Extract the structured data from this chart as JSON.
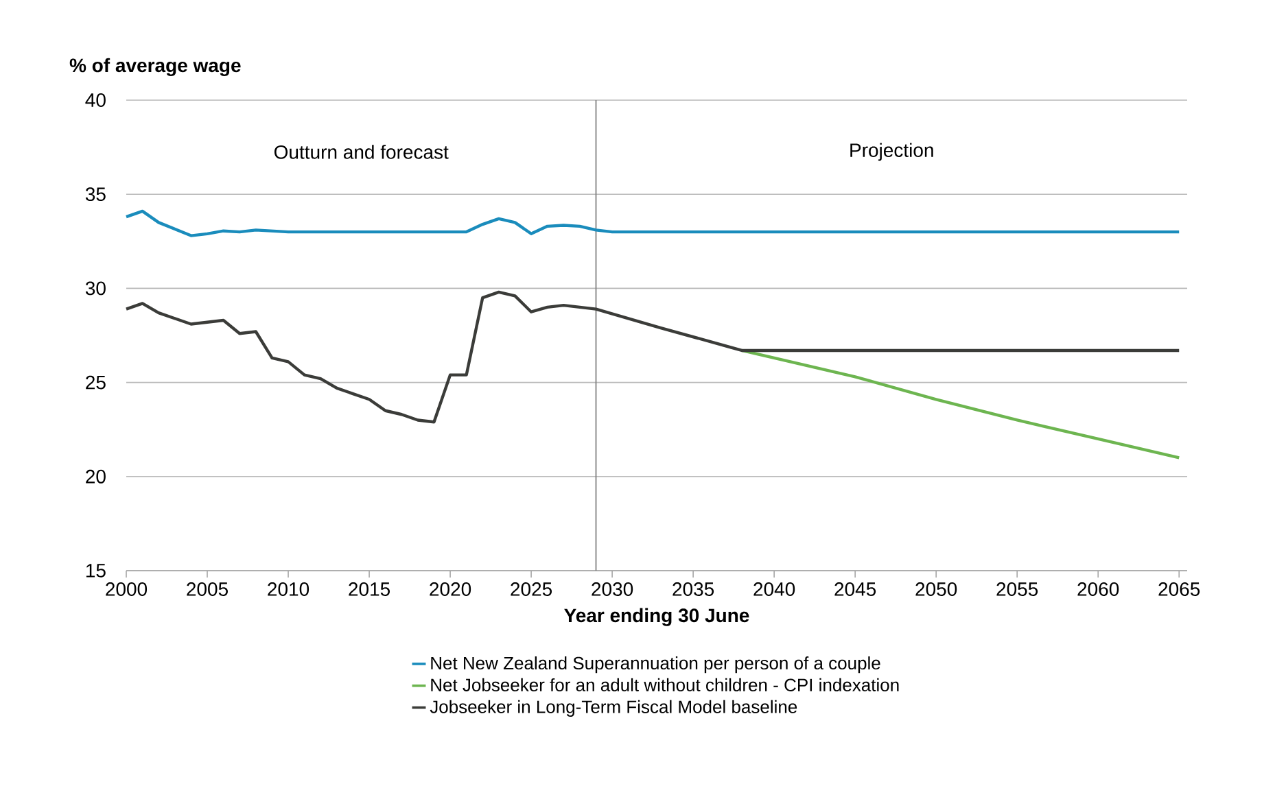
{
  "chart_data": {
    "type": "line",
    "ylabel": "% of average wage",
    "xlabel": "Year ending 30 June",
    "xlim": [
      2000,
      2065.5
    ],
    "ylim": [
      15,
      40
    ],
    "xticks": [
      2000,
      2005,
      2010,
      2015,
      2020,
      2025,
      2030,
      2035,
      2040,
      2045,
      2050,
      2055,
      2060,
      2065
    ],
    "yticks": [
      15,
      20,
      25,
      30,
      35,
      40
    ],
    "grid": "y",
    "legend": "bottom",
    "ref_lines": [
      {
        "axis": "x",
        "value": 2029,
        "color": "#808080"
      }
    ],
    "annotations": [
      "Outturn and forecast",
      "Projection"
    ],
    "series": [
      {
        "name": "Net New Zealand Superannuation per person of a couple",
        "color": "#1a8cbc",
        "x": [
          2000,
          2001,
          2002,
          2004,
          2005,
          2006,
          2007,
          2008,
          2009,
          2010,
          2021,
          2022,
          2023,
          2024,
          2025,
          2026,
          2027,
          2028,
          2029,
          2030,
          2065
        ],
        "values": [
          33.8,
          34.1,
          33.5,
          32.8,
          32.9,
          33.05,
          33.0,
          33.1,
          33.05,
          33.0,
          33.0,
          33.4,
          33.7,
          33.5,
          32.9,
          33.3,
          33.35,
          33.3,
          33.1,
          33.0,
          33.0
        ]
      },
      {
        "name": "Net Jobseeker for an adult without children - CPI indexation",
        "color": "#6db550",
        "x": [
          2038,
          2045,
          2050,
          2055,
          2060,
          2065
        ],
        "values": [
          26.7,
          25.3,
          24.1,
          23.0,
          22.0,
          21.0
        ]
      },
      {
        "name": "Jobseeker in Long-Term Fiscal Model baseline",
        "color": "#3b3c39",
        "x": [
          2000,
          2001,
          2002,
          2004,
          2005,
          2006,
          2007,
          2008,
          2009,
          2010,
          2011,
          2012,
          2013,
          2014,
          2015,
          2016,
          2017,
          2018,
          2019,
          2020,
          2021,
          2022,
          2023,
          2024,
          2025,
          2026,
          2027,
          2028,
          2029,
          2033,
          2038,
          2065
        ],
        "values": [
          28.9,
          29.2,
          28.7,
          28.1,
          28.2,
          28.3,
          27.6,
          27.7,
          26.3,
          26.1,
          25.4,
          25.2,
          24.7,
          24.4,
          24.1,
          23.5,
          23.3,
          23.0,
          22.9,
          25.4,
          25.4,
          29.5,
          29.8,
          29.6,
          28.75,
          29.0,
          29.1,
          29.0,
          28.9,
          27.9,
          26.7,
          26.7
        ]
      }
    ]
  }
}
